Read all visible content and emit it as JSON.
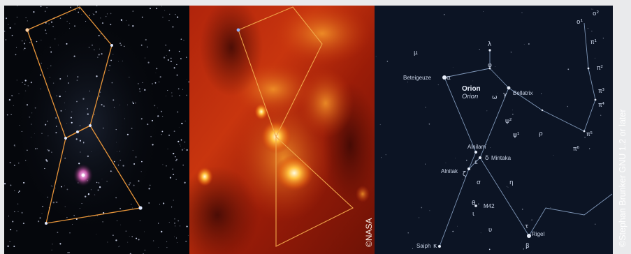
{
  "credits": {
    "nasa": "©NASA",
    "license": "©Stephan Brunker GNU 1.2 or later"
  },
  "chart": {
    "title": "Orion",
    "subtitle": "Orion",
    "stars": {
      "betelgeuze": "Beteigeuze",
      "bellatrix": "Bellatrix",
      "alnilam": "Alnilam",
      "mintaka": "Mintaka",
      "alnitak": "Alnitak",
      "rigel": "Rigel",
      "saiph": "Saiph",
      "m42": "M42"
    },
    "greek": {
      "mu": "μ",
      "lambda": "λ",
      "phi": "φ",
      "alpha": "α",
      "gamma": "γ",
      "omega": "ω",
      "psi2": "ψ²",
      "psi1": "ψ¹",
      "rho": "ρ",
      "epsilon": "ε",
      "delta": "δ",
      "zeta": "ζ",
      "sigma": "σ",
      "eta": "η",
      "theta": "θ",
      "iota": "ι",
      "upsilon": "υ",
      "tau": "τ",
      "beta": "β",
      "kappa": "κ",
      "o1": "o¹",
      "o2": "o²",
      "pi1": "π¹",
      "pi2": "π²",
      "pi3": "π³",
      "pi4": "π⁴",
      "pi5": "π⁵",
      "pi6": "π⁶"
    }
  },
  "colors": {
    "photo_bg": "#05070c",
    "ir_bg": "#8a1a08",
    "chart_bg": "#0c1424",
    "outline": "#e8953a",
    "chart_line": "#7f97b8"
  }
}
